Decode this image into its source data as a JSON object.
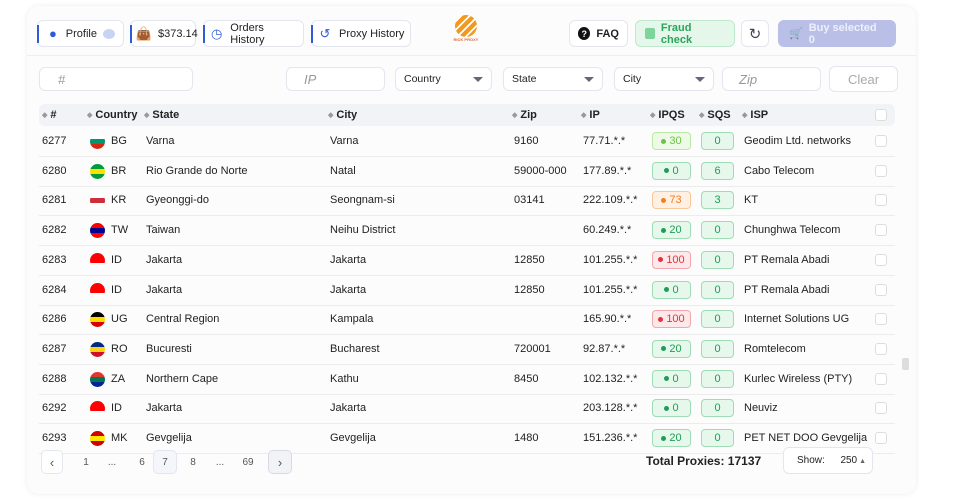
{
  "header": {
    "profile": "Profile",
    "balance": "$373.14",
    "orders_history": "Orders History",
    "proxy_history": "Proxy History",
    "logo_text": "RICK PROXY",
    "faq": "FAQ",
    "fraud_check": "Fraud check",
    "buy_selected": "Buy selected 0"
  },
  "filters": {
    "id_placeholder": "#",
    "ip_placeholder": "IP",
    "country": "Country",
    "state": "State",
    "city": "City",
    "zip_placeholder": "Zip",
    "clear": "Clear"
  },
  "columns": [
    "#",
    "Country",
    "State",
    "City",
    "Zip",
    "IP",
    "IPQS",
    "SQS",
    "ISP"
  ],
  "rows": [
    {
      "id": "6277",
      "code": "BG",
      "flag": [
        "#fff",
        "#00966e",
        "#d62612"
      ],
      "state": "Varna",
      "city": "Varna",
      "zip": "9160",
      "ip": "77.71.*.*",
      "ipqs": "30",
      "ipqs_level": "light",
      "sqs": "0",
      "isp": "Geodim Ltd. networks"
    },
    {
      "id": "6280",
      "code": "BR",
      "flag": [
        "#009c3b",
        "#ffdf00",
        "#009c3b"
      ],
      "state": "Rio Grande do Norte",
      "city": "Natal",
      "zip": "59000-000",
      "ip": "177.89.*.*",
      "ipqs": "0",
      "ipqs_level": "good",
      "sqs": "6",
      "isp": "Cabo Telecom"
    },
    {
      "id": "6281",
      "code": "KR",
      "flag": [
        "#fff",
        "#cd2e3a",
        "#fff"
      ],
      "state": "Gyeonggi-do",
      "city": "Seongnam-si",
      "zip": "03141",
      "ip": "222.109.*.*",
      "ipqs": "73",
      "ipqs_level": "warn",
      "sqs": "3",
      "isp": "KT"
    },
    {
      "id": "6282",
      "code": "TW",
      "flag": [
        "#fe0000",
        "#000095",
        "#fe0000"
      ],
      "state": "Taiwan",
      "city": "Neihu District",
      "zip": "",
      "ip": "60.249.*.*",
      "ipqs": "20",
      "ipqs_level": "good",
      "sqs": "0",
      "isp": "Chunghwa Telecom"
    },
    {
      "id": "6283",
      "code": "ID",
      "flag": [
        "#ff0000",
        "#ff0000",
        "#fff"
      ],
      "state": "Jakarta",
      "city": "Jakarta",
      "zip": "12850",
      "ip": "101.255.*.*",
      "ipqs": "100",
      "ipqs_level": "bad",
      "sqs": "0",
      "isp": "PT Remala Abadi"
    },
    {
      "id": "6284",
      "code": "ID",
      "flag": [
        "#ff0000",
        "#ff0000",
        "#fff"
      ],
      "state": "Jakarta",
      "city": "Jakarta",
      "zip": "12850",
      "ip": "101.255.*.*",
      "ipqs": "0",
      "ipqs_level": "good",
      "sqs": "0",
      "isp": "PT Remala Abadi"
    },
    {
      "id": "6286",
      "code": "UG",
      "flag": [
        "#000",
        "#fcdc04",
        "#d90000"
      ],
      "state": "Central Region",
      "city": "Kampala",
      "zip": "",
      "ip": "165.90.*.*",
      "ipqs": "100",
      "ipqs_level": "bad",
      "sqs": "0",
      "isp": "Internet Solutions UG"
    },
    {
      "id": "6287",
      "code": "RO",
      "flag": [
        "#002b7f",
        "#fcd116",
        "#ce1126"
      ],
      "state": "Bucuresti",
      "city": "Bucharest",
      "zip": "720001",
      "ip": "92.87.*.*",
      "ipqs": "20",
      "ipqs_level": "good",
      "sqs": "0",
      "isp": "Romtelecom"
    },
    {
      "id": "6288",
      "code": "ZA",
      "flag": [
        "#de3831",
        "#007a4d",
        "#002395"
      ],
      "state": "Northern Cape",
      "city": "Kathu",
      "zip": "8450",
      "ip": "102.132.*.*",
      "ipqs": "0",
      "ipqs_level": "good",
      "sqs": "0",
      "isp": "Kurlec Wireless (PTY)"
    },
    {
      "id": "6292",
      "code": "ID",
      "flag": [
        "#ff0000",
        "#ff0000",
        "#fff"
      ],
      "state": "Jakarta",
      "city": "Jakarta",
      "zip": "",
      "ip": "203.128.*.*",
      "ipqs": "0",
      "ipqs_level": "good",
      "sqs": "0",
      "isp": "Neuviz"
    },
    {
      "id": "6293",
      "code": "MK",
      "flag": [
        "#d20000",
        "#ffe600",
        "#d20000"
      ],
      "state": "Gevgelija",
      "city": "Gevgelija",
      "zip": "1480",
      "ip": "151.236.*.*",
      "ipqs": "20",
      "ipqs_level": "good",
      "sqs": "0",
      "isp": "PET NET DOO Gevgelija"
    }
  ],
  "pagination": {
    "pages": [
      "1",
      "...",
      "6",
      "7",
      "8",
      "...",
      "69"
    ],
    "current": "7"
  },
  "footer": {
    "total": "Total Proxies: 17137",
    "show_label": "Show:",
    "show_value": "250"
  },
  "colors": {
    "accent": "#2f5bd8",
    "good": "#1f9d55",
    "warn": "#f07f1e",
    "bad": "#e5323b",
    "buy_disabled": "#b9bfe6"
  }
}
